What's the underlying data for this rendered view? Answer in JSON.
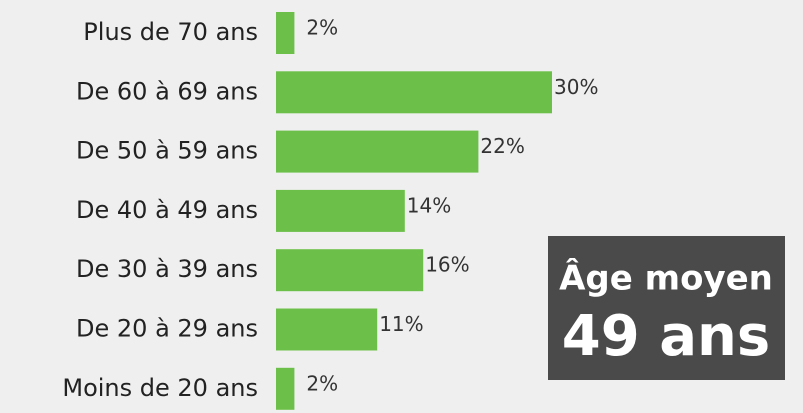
{
  "chart_data": {
    "type": "hbar",
    "categories": [
      "Plus de 70 ans",
      "De 60 à 69 ans",
      "De 50 à 59 ans",
      "De 40 à 49 ans",
      "De 30 à 39 ans",
      "De 20 à 29 ans",
      "Moins de 20 ans"
    ],
    "values": [
      2,
      30,
      22,
      14,
      16,
      11,
      2
    ],
    "value_labels": [
      "2%",
      "30%",
      "22%",
      "14%",
      "16%",
      "11%",
      "2%"
    ],
    "color": "#6cc04a",
    "annotation": {
      "title": "Âge moyen",
      "value": "49 ans"
    }
  }
}
